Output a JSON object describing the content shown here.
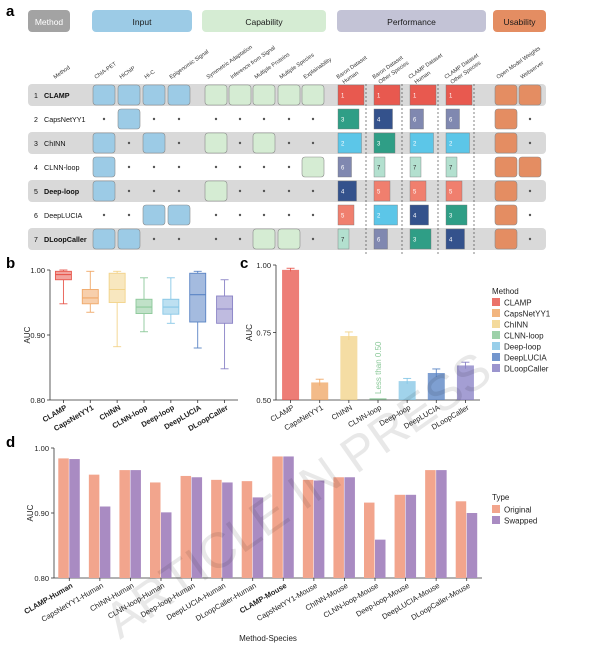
{
  "panel_labels": {
    "a": "a",
    "b": "b",
    "c": "c",
    "d": "d"
  },
  "colors": {
    "CLAMP": "#e8594f",
    "CapsNetYY1": "#f0a868",
    "ChINN": "#f2d38a",
    "CLNN-loop": "#8cc99a",
    "Deep-loop": "#87c7e6",
    "DeepLUCIA": "#5a84c4",
    "DLoopCaller": "#8a83c6",
    "Original": "#f2a58d",
    "Swapped": "#a98bc2"
  },
  "watermark": "ARTICLE IN PRESS",
  "table": {
    "categories": [
      {
        "name": "Method",
        "color": "#a3a3a3",
        "text_color": "#ffffff"
      },
      {
        "name": "Input",
        "color": "#9ccbe6",
        "text_color": "#1a1a1a"
      },
      {
        "name": "Capability",
        "color": "#d5ecd3",
        "text_color": "#1a1a1a"
      },
      {
        "name": "Performance",
        "color": "#c3c3d6",
        "text_color": "#1a1a1a"
      },
      {
        "name": "Usability",
        "color": "#e48d62",
        "text_color": "#1a1a1a"
      }
    ],
    "method_header": "Method",
    "input_cols": [
      "ChIA-PET",
      "HiChIP",
      "Hi-C",
      "Epigenomic Signal"
    ],
    "capability_cols": [
      "Symmetric Adaptation",
      "Inference from Signal",
      "Multiple Proteins",
      "Multiple Species",
      "Explainability"
    ],
    "performance_cols": [
      "Baron Dataset Human",
      "Baron Dataset Other Species",
      "CLAMP Dataset Human",
      "CLAMP Dataset Other Species"
    ],
    "usability_cols": [
      "Open Model Weights",
      "Webserver"
    ],
    "rows": [
      {
        "num": "1",
        "name": "CLAMP",
        "bold": true,
        "input": [
          1,
          1,
          1,
          1
        ],
        "cap": [
          1,
          1,
          1,
          1,
          1
        ],
        "perf": [
          "1",
          "1",
          "1",
          "1"
        ],
        "use": [
          1,
          1
        ]
      },
      {
        "num": "2",
        "name": "CapsNetYY1",
        "bold": false,
        "input": [
          0,
          1,
          0,
          0
        ],
        "cap": [
          0,
          0,
          0,
          0,
          0
        ],
        "perf": [
          "3",
          "4",
          "6",
          "6"
        ],
        "use": [
          1,
          0
        ]
      },
      {
        "num": "3",
        "name": "ChINN",
        "bold": false,
        "input": [
          1,
          0,
          1,
          0
        ],
        "cap": [
          1,
          0,
          1,
          0,
          0
        ],
        "perf": [
          "2",
          "3",
          "2",
          "2"
        ],
        "use": [
          1,
          0
        ]
      },
      {
        "num": "4",
        "name": "CLNN-loop",
        "bold": false,
        "input": [
          1,
          0,
          0,
          0
        ],
        "cap": [
          0,
          0,
          0,
          0,
          1
        ],
        "perf": [
          "6",
          "7",
          "7",
          "7"
        ],
        "use": [
          1,
          1
        ]
      },
      {
        "num": "5",
        "name": "Deep-loop",
        "bold": true,
        "input": [
          1,
          0,
          0,
          0
        ],
        "cap": [
          1,
          0,
          0,
          0,
          0
        ],
        "perf": [
          "4",
          "5",
          "5",
          "5"
        ],
        "use": [
          1,
          0
        ]
      },
      {
        "num": "6",
        "name": "DeepLUCIA",
        "bold": false,
        "input": [
          0,
          0,
          1,
          1
        ],
        "cap": [
          0,
          0,
          0,
          0,
          0
        ],
        "perf": [
          "5",
          "2",
          "4",
          "3"
        ],
        "use": [
          1,
          0
        ]
      },
      {
        "num": "7",
        "name": "DLoopCaller",
        "bold": true,
        "input": [
          1,
          1,
          0,
          0
        ],
        "cap": [
          0,
          0,
          1,
          1,
          0
        ],
        "perf": [
          "7",
          "6",
          "3",
          "4"
        ],
        "use": [
          1,
          0
        ]
      }
    ],
    "rank_colors": {
      "1": "#e8594f",
      "2": "#5cc6e8",
      "3": "#2f9e86",
      "4": "#34528c",
      "5": "#f07f6e",
      "6": "#8088b0",
      "7": "#b3e0cf"
    }
  },
  "chart_data": [
    {
      "type": "box",
      "panel": "b",
      "ylabel": "AUC",
      "ylim": [
        0.8,
        1.0
      ],
      "yticks": [
        "0.80",
        "0.90",
        "1.00"
      ],
      "categories": [
        "CLAMP",
        "CapsNetYY1",
        "ChINN",
        "CLNN-loop",
        "Deep-loop",
        "DeepLUCIA",
        "DLoopCaller"
      ],
      "boxes": [
        {
          "min": 0.948,
          "q1": 0.985,
          "median": 0.993,
          "q3": 0.998,
          "max": 1.0
        },
        {
          "min": 0.935,
          "q1": 0.948,
          "median": 0.957,
          "q3": 0.97,
          "max": 0.998
        },
        {
          "min": 0.882,
          "q1": 0.95,
          "median": 0.97,
          "q3": 0.995,
          "max": 0.998
        },
        {
          "min": 0.905,
          "q1": 0.933,
          "median": 0.943,
          "q3": 0.955,
          "max": 0.988
        },
        {
          "min": 0.918,
          "q1": 0.932,
          "median": 0.943,
          "q3": 0.955,
          "max": 0.988
        },
        {
          "min": 0.88,
          "q1": 0.92,
          "median": 0.962,
          "q3": 0.995,
          "max": 0.998
        },
        {
          "min": 0.848,
          "q1": 0.918,
          "median": 0.94,
          "q3": 0.96,
          "max": 0.985
        }
      ]
    },
    {
      "type": "bar",
      "panel": "c",
      "ylabel": "AUC",
      "ylim": [
        0.5,
        1.0
      ],
      "yticks": [
        "0.50",
        "0.75",
        "1.00"
      ],
      "categories": [
        "CLAMP",
        "CapsNetYY1",
        "ChINN",
        "CLNN-loop",
        "Deep-loop",
        "DeepLUCIA",
        "DLoopCaller"
      ],
      "values": [
        0.982,
        0.565,
        0.737,
        0.5,
        0.57,
        0.6,
        0.628
      ],
      "errors": [
        0.006,
        0.012,
        0.015,
        0.0,
        0.01,
        0.015,
        0.012
      ],
      "annotation": "Less than 0.50",
      "legend": {
        "title": "Method",
        "entries": [
          "CLAMP",
          "CapsNetYY1",
          "ChINN",
          "CLNN-loop",
          "Deep-loop",
          "DeepLUCIA",
          "DLoopCaller"
        ]
      }
    },
    {
      "type": "bar",
      "panel": "d",
      "ylabel": "AUC",
      "xlabel": "Method-Species",
      "ylim": [
        0.8,
        1.0
      ],
      "yticks": [
        "0.80",
        "0.90",
        "1.00"
      ],
      "categories": [
        "CLAMP-Human",
        "CapsNetYY1-Human",
        "ChINN-Human",
        "CLNN-loop-Human",
        "Deep-loop-Human",
        "DeepLUCIA-Human",
        "DLoopCaller-Human",
        "CLAMP-Mouse",
        "CapsNetYY1-Mouse",
        "ChINN-Mouse",
        "CLNN-loop-Mouse",
        "Deep-loop-Mouse",
        "DeepLUCIA-Mouse",
        "DLoopCaller-Mouse"
      ],
      "bold_categories": [
        "CLAMP-Human",
        "CLAMP-Mouse"
      ],
      "series": [
        {
          "name": "Original",
          "values": [
            0.984,
            0.959,
            0.966,
            0.947,
            0.957,
            0.951,
            0.949,
            0.987,
            0.951,
            0.955,
            0.916,
            0.928,
            0.966,
            0.918
          ]
        },
        {
          "name": "Swapped",
          "values": [
            0.983,
            0.91,
            0.966,
            0.901,
            0.955,
            0.947,
            0.924,
            0.987,
            0.95,
            0.955,
            0.859,
            0.928,
            0.966,
            0.9
          ]
        }
      ],
      "legend": {
        "title": "Type",
        "entries": [
          "Original",
          "Swapped"
        ]
      }
    }
  ]
}
